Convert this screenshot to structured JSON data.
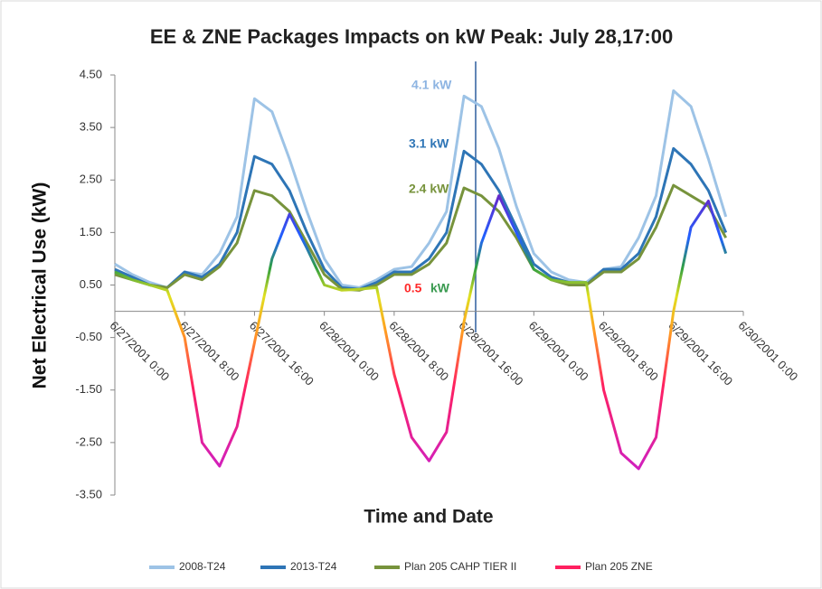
{
  "chart_data": {
    "type": "line",
    "title": "EE & ZNE Packages Impacts on kW Peak:  July 28,17:00",
    "x_label": "Time and Date",
    "y_label": "Net Electrical Use (kW)",
    "x": [
      "6/27/2001 0:00",
      "6/27/2001 2:00",
      "6/27/2001 4:00",
      "6/27/2001 6:00",
      "6/27/2001 8:00",
      "6/27/2001 10:00",
      "6/27/2001 12:00",
      "6/27/2001 14:00",
      "6/27/2001 16:00",
      "6/27/2001 18:00",
      "6/27/2001 20:00",
      "6/27/2001 22:00",
      "6/28/2001 0:00",
      "6/28/2001 2:00",
      "6/28/2001 4:00",
      "6/28/2001 6:00",
      "6/28/2001 8:00",
      "6/28/2001 10:00",
      "6/28/2001 12:00",
      "6/28/2001 14:00",
      "6/28/2001 16:00",
      "6/28/2001 18:00",
      "6/28/2001 20:00",
      "6/28/2001 22:00",
      "6/29/2001 0:00",
      "6/29/2001 2:00",
      "6/29/2001 4:00",
      "6/29/2001 6:00",
      "6/29/2001 8:00",
      "6/29/2001 10:00",
      "6/29/2001 12:00",
      "6/29/2001 14:00",
      "6/29/2001 16:00",
      "6/29/2001 18:00",
      "6/29/2001 20:00",
      "6/29/2001 22:00"
    ],
    "series": [
      {
        "name": "2008-T24",
        "color": "#9dc3e6",
        "values": [
          0.9,
          0.7,
          0.55,
          0.45,
          0.75,
          0.7,
          1.1,
          1.8,
          4.05,
          3.8,
          2.9,
          1.9,
          1.0,
          0.5,
          0.45,
          0.6,
          0.8,
          0.85,
          1.3,
          1.9,
          4.1,
          3.9,
          3.1,
          2.0,
          1.1,
          0.75,
          0.6,
          0.55,
          0.8,
          0.85,
          1.4,
          2.2,
          4.2,
          3.9,
          2.9,
          1.8
        ]
      },
      {
        "name": "2013-T24",
        "color": "#2e75b6",
        "values": [
          0.8,
          0.65,
          0.5,
          0.45,
          0.75,
          0.65,
          0.9,
          1.5,
          2.95,
          2.8,
          2.3,
          1.5,
          0.8,
          0.45,
          0.42,
          0.55,
          0.75,
          0.75,
          1.0,
          1.5,
          3.05,
          2.8,
          2.3,
          1.6,
          0.9,
          0.65,
          0.55,
          0.5,
          0.8,
          0.8,
          1.1,
          1.8,
          3.1,
          2.8,
          2.3,
          1.5
        ]
      },
      {
        "name": "Plan 205 CAHP TIER II",
        "color": "#77933c",
        "values": [
          0.7,
          0.6,
          0.5,
          0.45,
          0.7,
          0.6,
          0.85,
          1.3,
          2.3,
          2.2,
          1.9,
          1.3,
          0.7,
          0.42,
          0.4,
          0.5,
          0.7,
          0.7,
          0.9,
          1.3,
          2.35,
          2.2,
          1.9,
          1.4,
          0.8,
          0.6,
          0.5,
          0.5,
          0.75,
          0.75,
          1.0,
          1.6,
          2.4,
          2.2,
          2.0,
          1.4
        ]
      },
      {
        "name": "Plan 205 ZNE",
        "color": "#ff2060",
        "values": [
          0.75,
          0.6,
          0.5,
          0.4,
          -0.5,
          -2.5,
          -2.95,
          -2.2,
          -0.6,
          1.0,
          1.85,
          1.2,
          0.5,
          0.4,
          0.42,
          0.45,
          -1.2,
          -2.4,
          -2.85,
          -2.3,
          -0.2,
          1.3,
          2.2,
          1.5,
          0.8,
          0.6,
          0.55,
          0.55,
          -1.5,
          -2.7,
          -3.0,
          -2.4,
          0.0,
          1.6,
          2.1,
          1.1
        ]
      }
    ],
    "annotations": [
      {
        "text": "4.1 kW",
        "color": "#8db4e2"
      },
      {
        "text": "3.1 kW",
        "color": "#2e75b6"
      },
      {
        "text": "2.4 kW",
        "color": "#77933c"
      },
      {
        "text": "0.5",
        "color": "#ff2a2a"
      },
      {
        "text": "kW",
        "color": "#3a9a50"
      }
    ],
    "xlim": [
      "6/27/2001 0:00",
      "6/30/2001 0:00"
    ],
    "xticks": [
      "6/27/2001 0:00",
      "6/27/2001 8:00",
      "6/27/2001 16:00",
      "6/28/2001 0:00",
      "6/28/2001 8:00",
      "6/28/2001 16:00",
      "6/29/2001 0:00",
      "6/29/2001 8:00",
      "6/29/2001 16:00",
      "6/30/2001 0:00"
    ],
    "ylim": [
      -3.5,
      4.5
    ],
    "yticks": [
      {
        "value": -3.5,
        "label": "-3.50"
      },
      {
        "value": -2.5,
        "label": "-2.50"
      },
      {
        "value": -1.5,
        "label": "-1.50"
      },
      {
        "value": -0.5,
        "label": "-0.50"
      },
      {
        "value": 0.5,
        "label": "0.50"
      },
      {
        "value": 1.5,
        "label": "1.50"
      },
      {
        "value": 2.5,
        "label": "2.50"
      },
      {
        "value": 3.5,
        "label": "3.50"
      },
      {
        "value": 4.5,
        "label": "4.50"
      }
    ],
    "legend": "bottom"
  }
}
